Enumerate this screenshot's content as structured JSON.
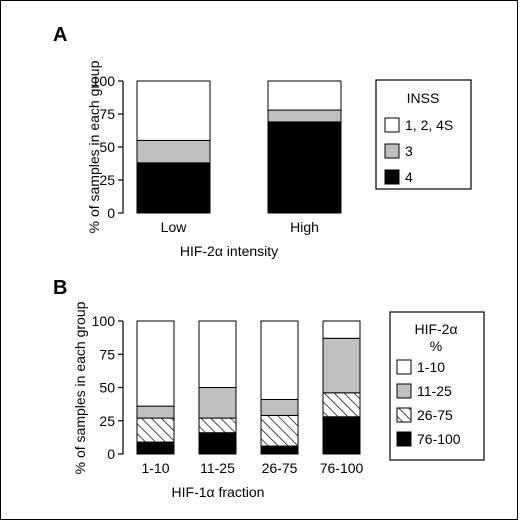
{
  "chart_data": [
    {
      "panel": "A",
      "type": "bar",
      "stacked": true,
      "categories": [
        "Low",
        "High"
      ],
      "series": [
        {
          "name": "4",
          "values": [
            38,
            69
          ],
          "color": "#000000",
          "pattern": "solid"
        },
        {
          "name": "3",
          "values": [
            17,
            9
          ],
          "color": "#c0c0c0",
          "pattern": "solid"
        },
        {
          "name": "1, 2, 4S",
          "values": [
            45,
            22
          ],
          "color": "#ffffff",
          "pattern": "solid"
        }
      ],
      "xlabel": "HIF-2α intensity",
      "ylabel": "% of samples in each group",
      "ylim": [
        0,
        100
      ],
      "yticks": [
        0,
        25,
        50,
        75,
        100
      ],
      "legend": {
        "title": "INSS",
        "placement": "right"
      }
    },
    {
      "panel": "B",
      "type": "bar",
      "stacked": true,
      "categories": [
        "1-10",
        "11-25",
        "26-75",
        "76-100"
      ],
      "series": [
        {
          "name": "76-100",
          "values": [
            9,
            16,
            6,
            28
          ],
          "color": "#000000",
          "pattern": "solid"
        },
        {
          "name": "26-75",
          "values": [
            18,
            11,
            23,
            18
          ],
          "color": "#ffffff",
          "pattern": "hatch"
        },
        {
          "name": "11-25",
          "values": [
            9,
            23,
            12,
            41
          ],
          "color": "#c0c0c0",
          "pattern": "solid"
        },
        {
          "name": "1-10",
          "values": [
            64,
            50,
            59,
            13
          ],
          "color": "#ffffff",
          "pattern": "solid"
        }
      ],
      "xlabel": "HIF-1α fraction",
      "ylabel": "% of samples in each group",
      "ylim": [
        0,
        100
      ],
      "yticks": [
        0,
        25,
        50,
        75,
        100
      ],
      "legend": {
        "title": "HIF-2α\n%",
        "placement": "right"
      }
    }
  ]
}
